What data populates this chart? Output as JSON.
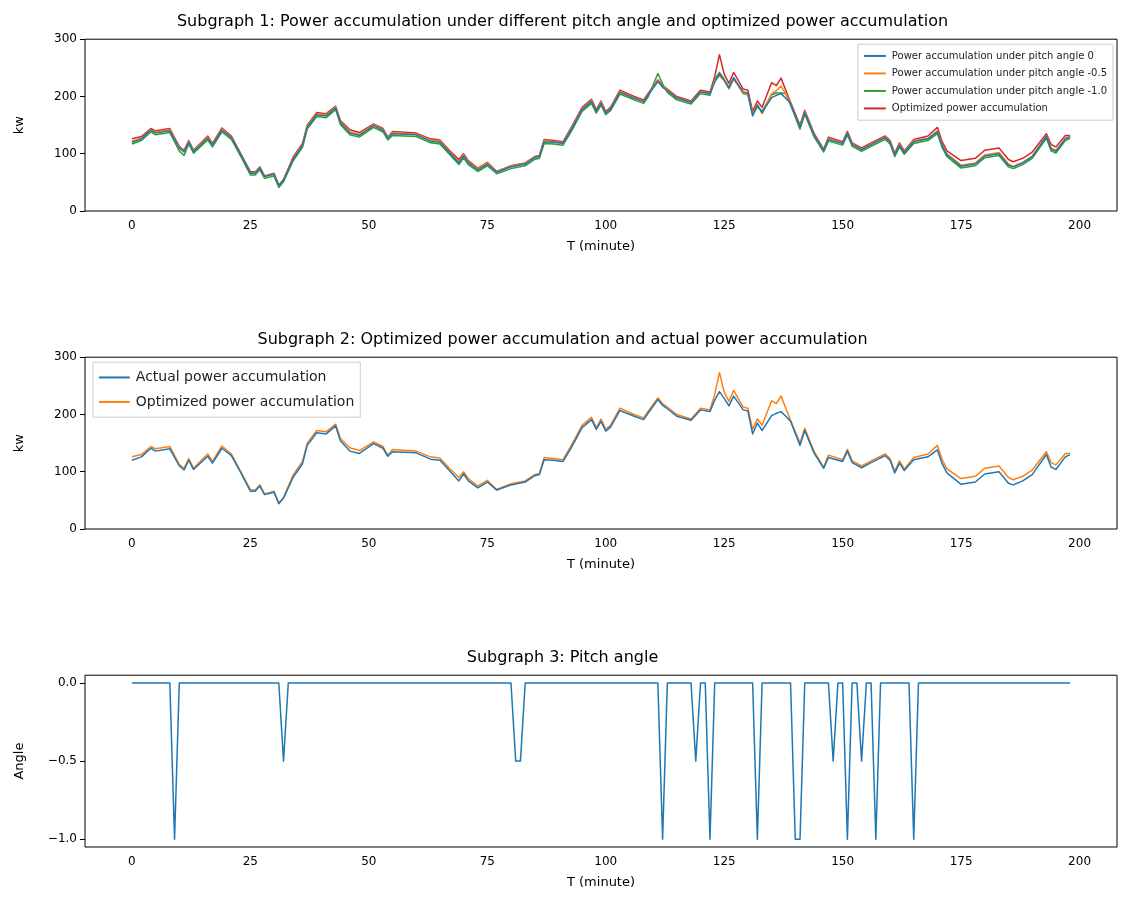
{
  "chart_data": [
    {
      "type": "line",
      "title": "Subgraph 1: Power accumulation under different pitch angle and optimized power accumulation",
      "xlabel": "T (minute)",
      "ylabel": "kw",
      "xlim": [
        -9.9,
        207.9
      ],
      "xticks": [
        0,
        25,
        50,
        75,
        100,
        125,
        150,
        175,
        200
      ],
      "ylim": [
        0,
        300
      ],
      "yticks": [
        0,
        100,
        200,
        300
      ],
      "legend": "top right",
      "x": [
        0,
        2,
        4,
        5,
        8,
        10,
        11,
        12,
        13,
        16,
        17,
        19,
        21,
        23,
        25,
        26,
        27,
        28,
        30,
        31,
        32,
        34,
        36,
        37,
        39,
        41,
        43,
        44,
        46,
        48,
        51,
        53,
        54,
        55,
        60,
        63,
        65,
        67,
        69,
        70,
        71,
        73,
        75,
        77,
        80,
        83,
        85,
        86,
        87,
        89,
        91,
        93,
        95,
        97,
        98,
        99,
        100,
        101,
        103,
        106,
        108,
        109,
        111,
        112,
        113,
        115,
        118,
        120,
        122,
        123,
        124,
        125,
        126,
        127,
        129,
        130,
        131,
        132,
        133,
        135,
        136,
        137,
        138,
        139,
        141,
        142,
        144,
        146,
        147,
        150,
        151,
        152,
        154,
        156,
        159,
        160,
        161,
        162,
        163,
        165,
        168,
        170,
        171,
        172,
        175,
        178,
        180,
        183,
        185,
        186,
        188,
        190,
        193,
        194,
        195,
        197,
        198
      ],
      "series": [
        {
          "name": "Power accumulation under pitch angle 0",
          "color": "#1f77b4",
          "values": [
            120,
            126,
            141,
            136,
            140,
            110,
            103,
            120,
            104,
            127,
            115,
            141,
            128,
            98,
            66,
            66,
            75,
            60,
            64,
            44,
            54,
            90,
            114,
            146,
            168,
            166,
            180,
            154,
            136,
            132,
            149,
            141,
            127,
            135,
            133,
            122,
            120,
            102,
            84,
            96,
            84,
            72,
            82,
            68,
            77,
            82,
            93,
            95,
            121,
            120,
            118,
            146,
            177,
            191,
            174,
            188,
            171,
            178,
            207,
            197,
            191,
            203,
            226,
            216,
            210,
            197,
            190,
            208,
            205,
            225,
            240,
            228,
            215,
            232,
            208,
            206,
            166,
            185,
            172,
            198,
            202,
            205,
            197,
            188,
            146,
            172,
            132,
            106,
            125,
            118,
            136,
            116,
            107,
            116,
            128,
            120,
            98,
            115,
            102,
            121,
            126,
            138,
            114,
            98,
            78,
            82,
            96,
            100,
            80,
            77,
            84,
            95,
            130,
            108,
            104,
            126,
            130
          ]
        },
        {
          "name": "Power accumulation under pitch angle -0.5",
          "color": "#ff7f0e",
          "values": [
            122,
            127,
            142,
            138,
            142,
            111,
            104,
            121,
            105,
            129,
            116,
            143,
            129,
            99,
            67,
            67,
            76,
            60,
            65,
            44,
            55,
            92,
            116,
            148,
            170,
            168,
            182,
            156,
            138,
            134,
            151,
            142,
            128,
            137,
            134,
            124,
            122,
            104,
            86,
            98,
            86,
            74,
            84,
            69,
            78,
            83,
            94,
            96,
            123,
            121,
            119,
            148,
            179,
            193,
            175,
            190,
            172,
            179,
            209,
            198,
            192,
            204,
            227,
            217,
            211,
            198,
            191,
            207,
            206,
            228,
            236,
            228,
            213,
            230,
            206,
            204,
            168,
            186,
            170,
            205,
            210,
            218,
            205,
            189,
            148,
            174,
            133,
            107,
            127,
            119,
            137,
            117,
            108,
            117,
            129,
            121,
            99,
            117,
            103,
            123,
            127,
            140,
            116,
            100,
            80,
            84,
            98,
            102,
            82,
            78,
            85,
            96,
            131,
            110,
            106,
            127,
            130
          ]
        },
        {
          "name": "Power accumulation under pitch angle -1.0",
          "color": "#2ca02c",
          "values": [
            117,
            123,
            138,
            133,
            137,
            105,
            97,
            117,
            101,
            124,
            112,
            138,
            125,
            95,
            63,
            63,
            72,
            57,
            61,
            41,
            51,
            87,
            111,
            143,
            165,
            163,
            177,
            151,
            133,
            129,
            146,
            138,
            124,
            132,
            130,
            119,
            117,
            99,
            81,
            93,
            81,
            69,
            79,
            65,
            74,
            79,
            90,
            92,
            118,
            117,
            115,
            143,
            174,
            188,
            171,
            185,
            168,
            175,
            204,
            194,
            188,
            200,
            240,
            222,
            207,
            194,
            187,
            205,
            202,
            230,
            242,
            230,
            216,
            233,
            205,
            203,
            168,
            182,
            174,
            203,
            206,
            206,
            205,
            185,
            143,
            169,
            129,
            103,
            122,
            115,
            133,
            113,
            104,
            113,
            125,
            117,
            95,
            112,
            99,
            118,
            123,
            135,
            111,
            95,
            75,
            79,
            93,
            97,
            77,
            74,
            81,
            92,
            127,
            105,
            101,
            123,
            127
          ]
        },
        {
          "name": "Optimized power accumulation",
          "color": "#d62728",
          "values": [
            126,
            130,
            144,
            140,
            144,
            113,
            106,
            123,
            106,
            131,
            118,
            145,
            131,
            100,
            69,
            68,
            77,
            61,
            66,
            45,
            55,
            94,
            118,
            150,
            172,
            170,
            183,
            158,
            142,
            137,
            152,
            144,
            129,
            139,
            136,
            126,
            124,
            106,
            90,
            100,
            88,
            75,
            85,
            69,
            79,
            84,
            95,
            97,
            125,
            123,
            121,
            150,
            181,
            195,
            177,
            192,
            174,
            181,
            211,
            200,
            194,
            206,
            229,
            219,
            213,
            200,
            192,
            211,
            208,
            235,
            273,
            239,
            223,
            242,
            213,
            211,
            174,
            192,
            181,
            224,
            219,
            232,
            211,
            190,
            150,
            176,
            135,
            108,
            129,
            121,
            139,
            119,
            110,
            119,
            131,
            123,
            101,
            119,
            105,
            125,
            131,
            146,
            121,
            105,
            88,
            92,
            106,
            110,
            90,
            86,
            92,
            103,
            135,
            116,
            112,
            132,
            132
          ]
        }
      ]
    },
    {
      "type": "line",
      "title": "Subgraph 2: Optimized power accumulation and actual power accumulation",
      "xlabel": "T (minute)",
      "ylabel": "kw",
      "xlim": [
        -9.9,
        207.9
      ],
      "xticks": [
        0,
        25,
        50,
        75,
        100,
        125,
        150,
        175,
        200
      ],
      "ylim": [
        0,
        300
      ],
      "yticks": [
        0,
        100,
        200,
        300
      ],
      "legend": "top left",
      "x": [
        0,
        2,
        4,
        5,
        8,
        10,
        11,
        12,
        13,
        16,
        17,
        19,
        21,
        23,
        25,
        26,
        27,
        28,
        30,
        31,
        32,
        34,
        36,
        37,
        39,
        41,
        43,
        44,
        46,
        48,
        51,
        53,
        54,
        55,
        60,
        63,
        65,
        67,
        69,
        70,
        71,
        73,
        75,
        77,
        80,
        83,
        85,
        86,
        87,
        89,
        91,
        93,
        95,
        97,
        98,
        99,
        100,
        101,
        103,
        106,
        108,
        109,
        111,
        112,
        113,
        115,
        118,
        120,
        122,
        123,
        124,
        125,
        126,
        127,
        129,
        130,
        131,
        132,
        133,
        135,
        136,
        137,
        138,
        139,
        141,
        142,
        144,
        146,
        147,
        150,
        151,
        152,
        154,
        156,
        159,
        160,
        161,
        162,
        163,
        165,
        168,
        170,
        171,
        172,
        175,
        178,
        180,
        183,
        185,
        186,
        188,
        190,
        193,
        194,
        195,
        197,
        198
      ],
      "series": [
        {
          "name": "Actual power accumulation",
          "color": "#1f77b4",
          "values": [
            120,
            126,
            141,
            136,
            140,
            110,
            103,
            120,
            104,
            127,
            115,
            141,
            128,
            98,
            66,
            66,
            75,
            60,
            64,
            44,
            54,
            90,
            114,
            146,
            168,
            166,
            180,
            154,
            136,
            132,
            149,
            141,
            127,
            135,
            133,
            122,
            120,
            102,
            84,
            96,
            84,
            72,
            82,
            68,
            77,
            82,
            93,
            95,
            121,
            120,
            118,
            146,
            177,
            191,
            174,
            188,
            171,
            178,
            207,
            197,
            191,
            203,
            226,
            216,
            210,
            197,
            190,
            208,
            205,
            225,
            240,
            228,
            215,
            232,
            208,
            206,
            166,
            185,
            172,
            198,
            202,
            205,
            197,
            188,
            146,
            172,
            132,
            106,
            125,
            118,
            136,
            116,
            107,
            116,
            128,
            120,
            98,
            115,
            102,
            121,
            126,
            138,
            114,
            98,
            78,
            82,
            96,
            100,
            80,
            77,
            84,
            95,
            130,
            108,
            104,
            126,
            130
          ]
        },
        {
          "name": "Optimized power accumulation",
          "color": "#ff7f0e",
          "values": [
            126,
            130,
            144,
            140,
            144,
            113,
            106,
            123,
            106,
            131,
            118,
            145,
            131,
            100,
            69,
            68,
            77,
            61,
            66,
            45,
            55,
            94,
            118,
            150,
            172,
            170,
            183,
            158,
            142,
            137,
            152,
            144,
            129,
            139,
            136,
            126,
            124,
            106,
            90,
            100,
            88,
            75,
            85,
            69,
            79,
            84,
            95,
            97,
            125,
            123,
            121,
            150,
            181,
            195,
            177,
            192,
            174,
            181,
            211,
            200,
            194,
            206,
            229,
            219,
            213,
            200,
            192,
            211,
            208,
            235,
            273,
            239,
            223,
            242,
            213,
            211,
            174,
            192,
            181,
            224,
            219,
            232,
            211,
            190,
            150,
            176,
            135,
            108,
            129,
            121,
            139,
            119,
            110,
            119,
            131,
            123,
            101,
            119,
            105,
            125,
            131,
            146,
            121,
            105,
            88,
            92,
            106,
            110,
            90,
            86,
            92,
            103,
            135,
            116,
            112,
            132,
            132
          ]
        }
      ]
    },
    {
      "type": "line",
      "title": "Subgraph 3: Pitch angle",
      "xlabel": "T (minute)",
      "ylabel": "Angle",
      "xlim": [
        -9.9,
        207.9
      ],
      "xticks": [
        0,
        25,
        50,
        75,
        100,
        125,
        150,
        175,
        200
      ],
      "ylim": [
        -1.05,
        0.05
      ],
      "yticks": [
        {
          "value": -1,
          "label": "−1.0"
        },
        {
          "value": -0.5,
          "label": "−0.5"
        },
        {
          "value": 0,
          "label": "0.0"
        }
      ],
      "x": [
        0,
        8,
        9,
        10,
        31,
        32,
        33,
        80,
        81,
        82,
        83,
        111,
        112,
        113,
        118,
        119,
        120,
        121,
        122,
        123,
        131,
        132,
        133,
        139,
        140,
        141,
        142,
        147,
        148,
        149,
        150,
        151,
        152,
        153,
        154,
        155,
        156,
        157,
        158,
        164,
        165,
        166,
        198
      ],
      "series": [
        {
          "color": "#1f77b4",
          "values": [
            0,
            0,
            -1,
            0,
            0,
            -0.5,
            0,
            0,
            -0.5,
            -0.5,
            0,
            0,
            -1,
            0,
            0,
            -0.5,
            0,
            0,
            -1,
            0,
            0,
            -1,
            0,
            0,
            -1,
            -1,
            0,
            0,
            -0.5,
            0,
            0,
            -1,
            0,
            0,
            -0.5,
            0,
            0,
            -1,
            0,
            0,
            -1,
            0,
            0
          ]
        }
      ]
    }
  ]
}
